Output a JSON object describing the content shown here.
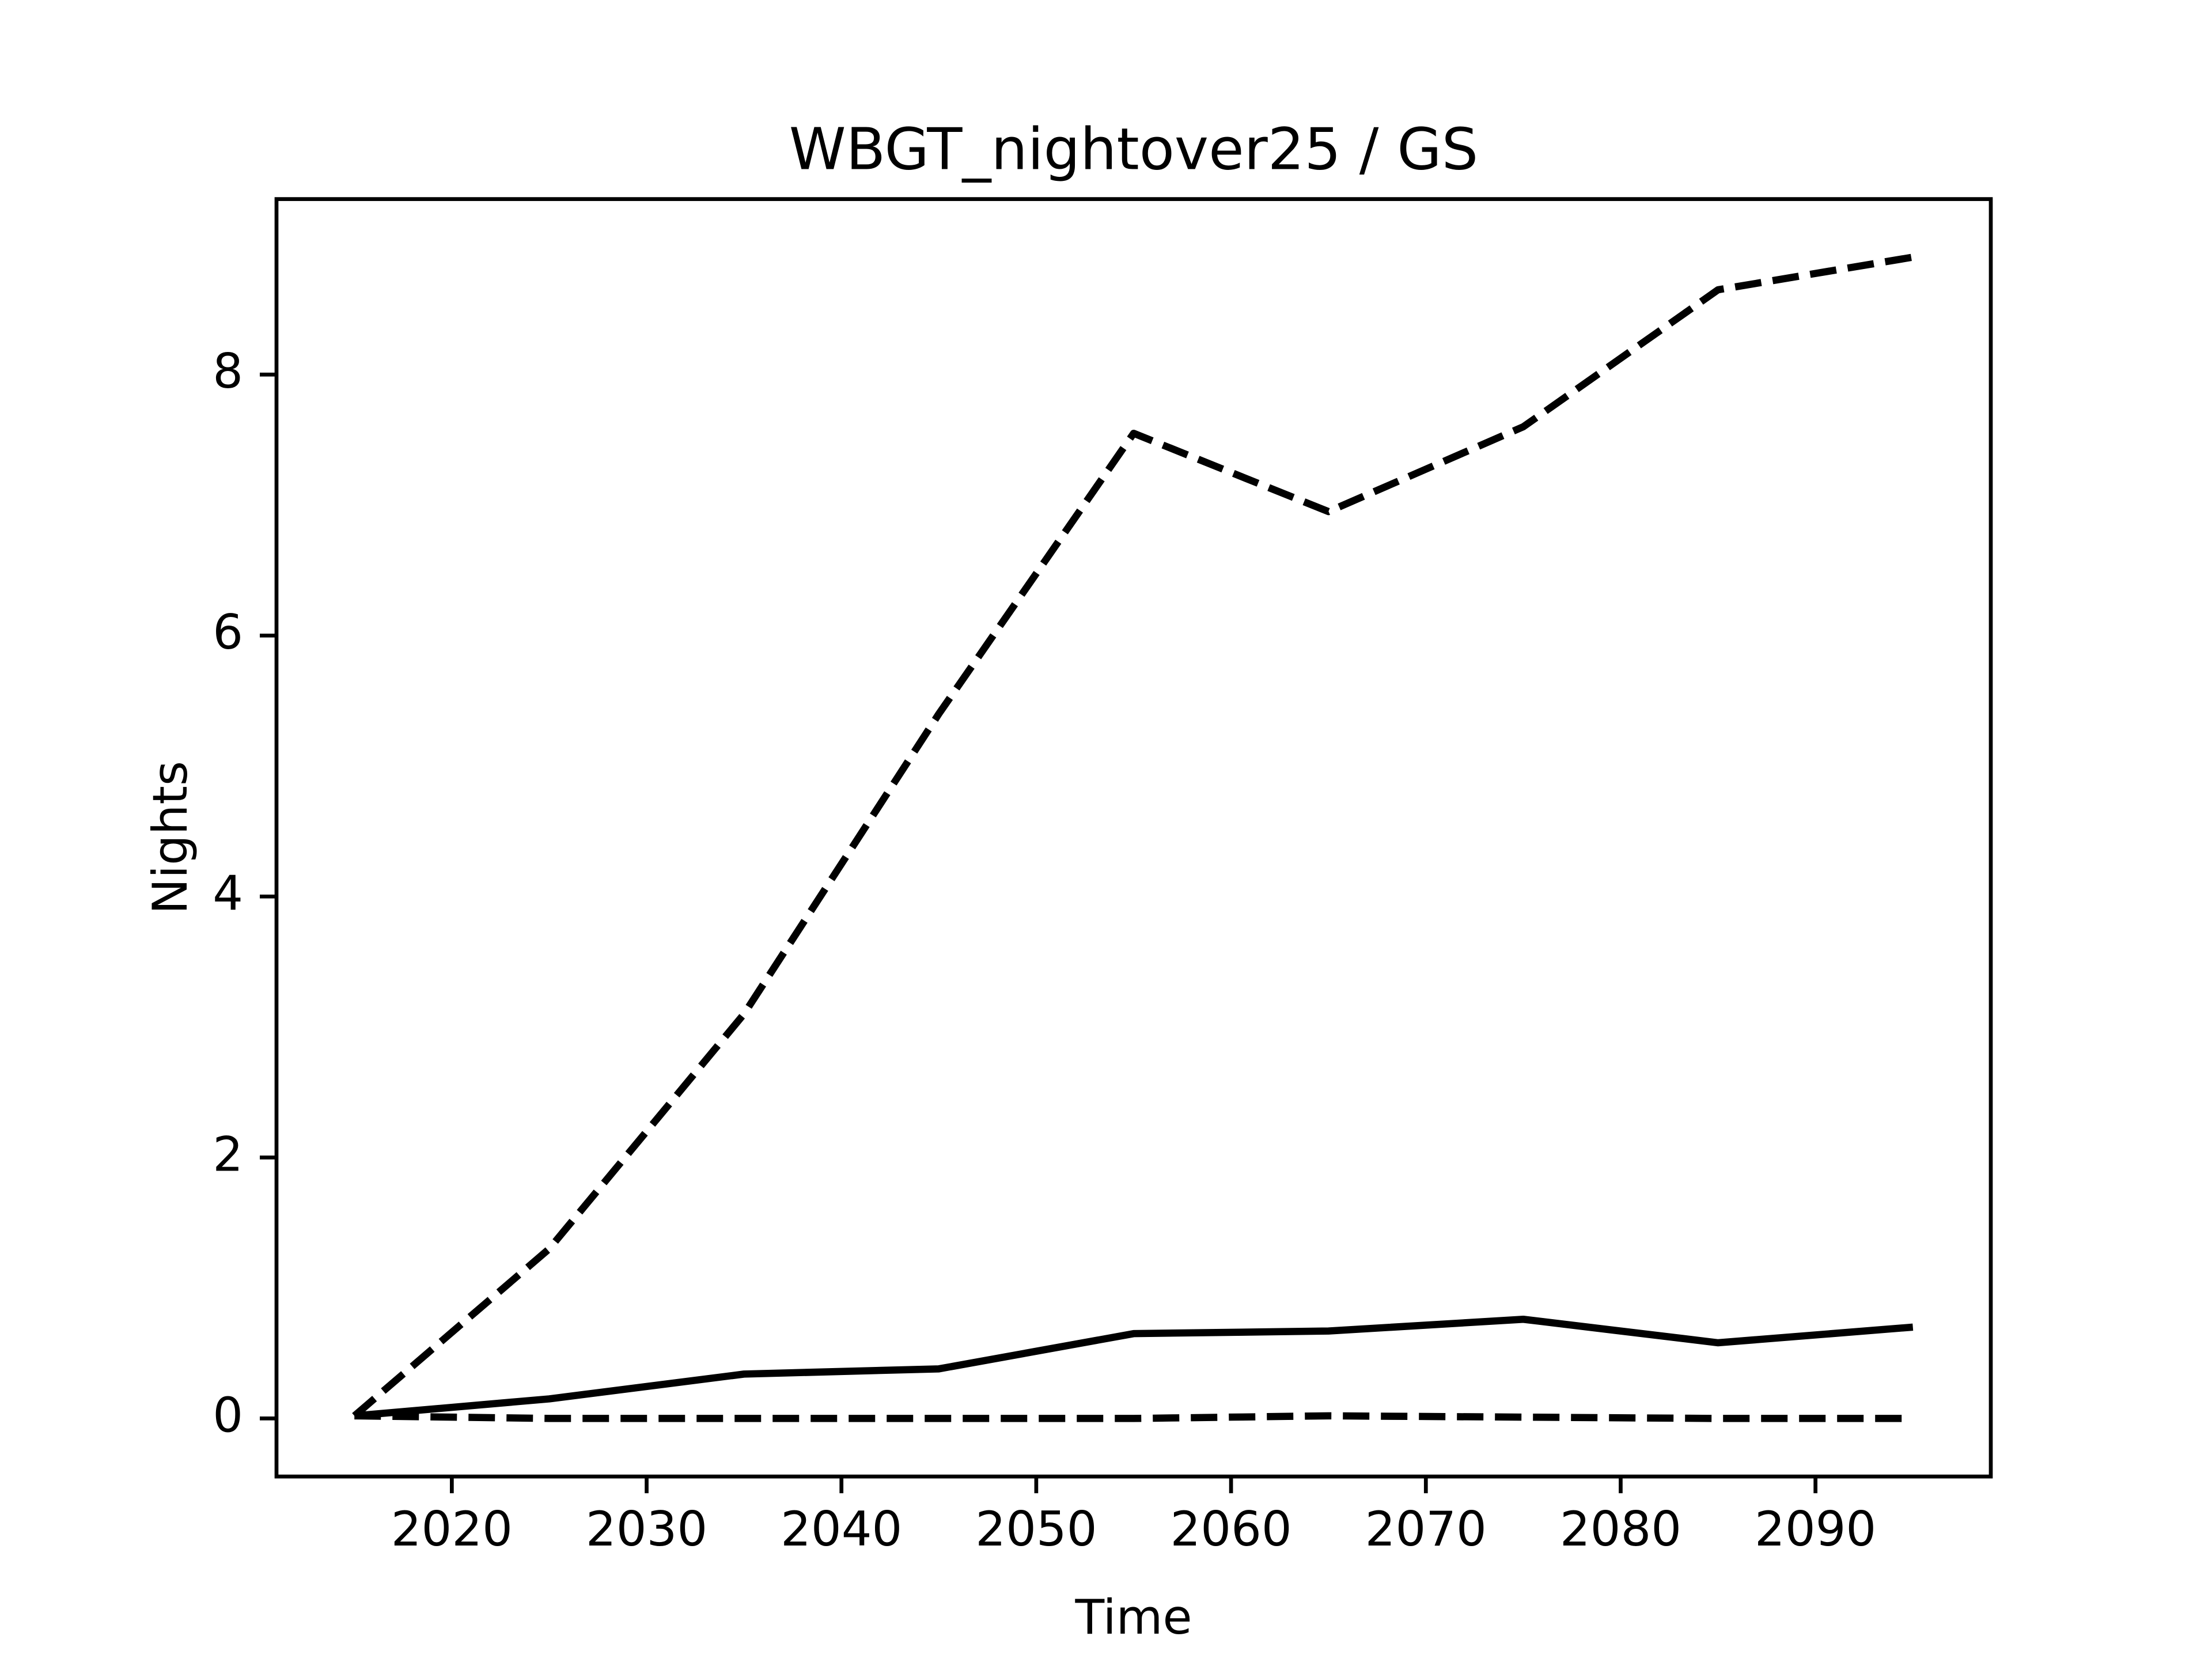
{
  "chart_data": {
    "type": "line",
    "title": "WBGT_nightover25 / GS",
    "x_label": "Time",
    "y_label": "Nights",
    "x": [
      2015,
      2025,
      2035,
      2045,
      2055,
      2065,
      2075,
      2085,
      2095
    ],
    "series": [
      {
        "color": "#000000",
        "linestyle": "dashed",
        "values": [
          0.02,
          1.3,
          3.1,
          5.4,
          7.55,
          6.95,
          7.6,
          8.65,
          8.9
        ]
      },
      {
        "color": "#000000",
        "linestyle": "solid",
        "values": [
          0.02,
          0.15,
          0.34,
          0.38,
          0.65,
          0.67,
          0.76,
          0.58,
          0.7
        ]
      },
      {
        "color": "#000000",
        "linestyle": "dashed",
        "values": [
          0.02,
          0.0,
          0.0,
          0.0,
          0.0,
          0.02,
          0.01,
          0.0,
          0.0
        ]
      }
    ],
    "xlim": [
      2011,
      2099
    ],
    "xticks": [
      2020,
      2030,
      2040,
      2050,
      2060,
      2070,
      2080,
      2090
    ],
    "ylim": [
      -0.445,
      9.345
    ],
    "yticks": [
      0,
      2,
      4,
      6,
      8
    ],
    "grid": false
  }
}
